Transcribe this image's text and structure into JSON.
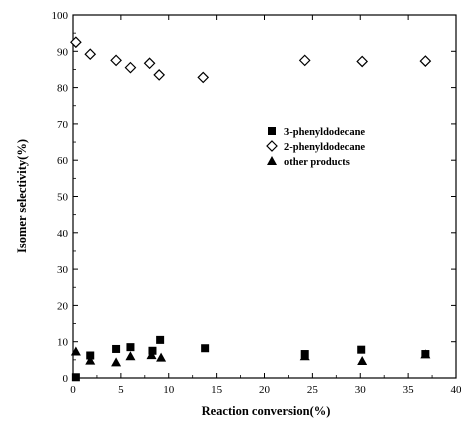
{
  "chart_data": {
    "type": "scatter",
    "title": "",
    "xlabel": "Reaction conversion(%)",
    "ylabel": "Isomer selectivity(%)",
    "xlim": [
      0,
      40
    ],
    "ylim": [
      0,
      100
    ],
    "xticks": [
      0,
      5,
      10,
      15,
      20,
      25,
      30,
      35,
      40
    ],
    "yticks": [
      0,
      10,
      20,
      30,
      40,
      50,
      60,
      70,
      80,
      90,
      100
    ],
    "grid": false,
    "legend_position": "right-middle",
    "series": [
      {
        "name": "3-phenyldodecane",
        "marker": "filled-square",
        "color": "#000000",
        "x": [
          0.3,
          1.8,
          4.5,
          6.0,
          8.3,
          9.1,
          13.8,
          24.2,
          30.1,
          36.8
        ],
        "y": [
          0.2,
          6.2,
          8.0,
          8.5,
          7.5,
          10.5,
          8.2,
          6.6,
          7.8,
          6.6
        ]
      },
      {
        "name": "2-phenyldodecane",
        "marker": "open-diamond",
        "color": "#000000",
        "x": [
          0.3,
          1.8,
          4.5,
          6.0,
          8.0,
          9.0,
          13.6,
          24.2,
          30.2,
          36.8
        ],
        "y": [
          92.5,
          89.2,
          87.5,
          85.5,
          86.7,
          83.5,
          82.8,
          87.5,
          87.2,
          87.3
        ]
      },
      {
        "name": "other products",
        "marker": "filled-triangle",
        "color": "#000000",
        "x": [
          0.3,
          1.8,
          4.5,
          6.0,
          8.2,
          9.2,
          24.2,
          30.2,
          36.8
        ],
        "y": [
          7.3,
          4.8,
          4.3,
          6.0,
          6.3,
          5.6,
          6.0,
          4.7,
          6.5
        ]
      }
    ]
  }
}
